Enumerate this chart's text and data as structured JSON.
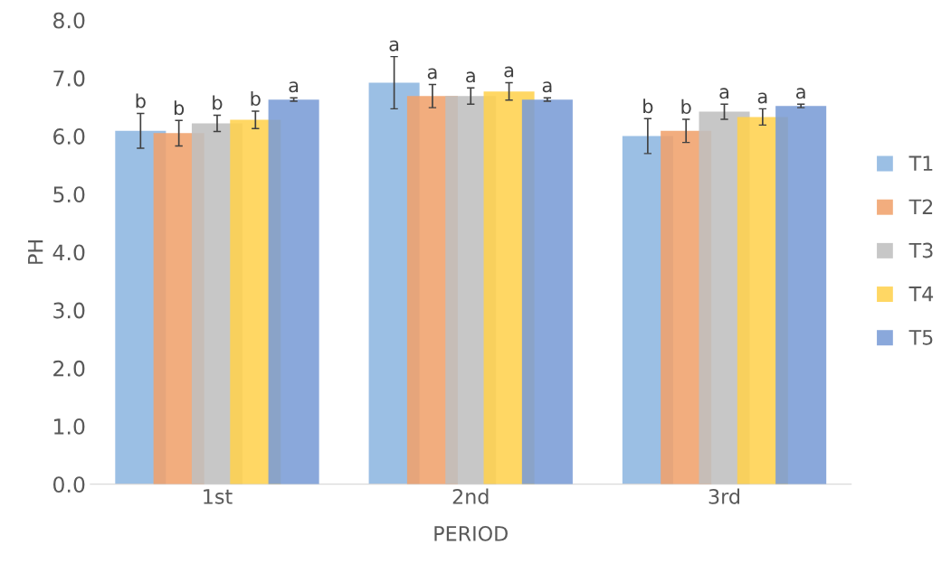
{
  "chart_data": {
    "type": "bar",
    "xlabel": "PERIOD",
    "ylabel": "PH",
    "categories": [
      "1st",
      "2nd",
      "3rd"
    ],
    "series": [
      {
        "name": "T1",
        "color": "#8db6e0",
        "values": [
          6.09,
          6.92,
          6.0
        ],
        "errors": [
          0.3,
          0.45,
          0.3
        ],
        "value_labels": [
          "b",
          "a",
          "b"
        ]
      },
      {
        "name": "T2",
        "color": "#f0a26c",
        "values": [
          6.05,
          6.69,
          6.09
        ],
        "errors": [
          0.22,
          0.2,
          0.2
        ],
        "value_labels": [
          "b",
          "a",
          "b"
        ]
      },
      {
        "name": "T3",
        "color": "#bfbfbf",
        "values": [
          6.22,
          6.69,
          6.42
        ],
        "errors": [
          0.14,
          0.14,
          0.13
        ],
        "value_labels": [
          "b",
          "a",
          "a"
        ]
      },
      {
        "name": "T4",
        "color": "#ffd24f",
        "values": [
          6.28,
          6.77,
          6.33
        ],
        "errors": [
          0.15,
          0.15,
          0.14
        ],
        "value_labels": [
          "b",
          "a",
          "a"
        ]
      },
      {
        "name": "T5",
        "color": "#7a9cd6",
        "values": [
          6.63,
          6.63,
          6.52
        ],
        "errors": [
          0.03,
          0.03,
          0.03
        ],
        "value_labels": [
          "a",
          "a",
          "a"
        ]
      }
    ],
    "ylim": [
      0,
      8
    ],
    "yticks": [
      {
        "value": 0,
        "label": "0.0"
      },
      {
        "value": 1,
        "label": "1.0"
      },
      {
        "value": 2,
        "label": "2.0"
      },
      {
        "value": 3,
        "label": "3.0"
      },
      {
        "value": 4,
        "label": "4.0"
      },
      {
        "value": 5,
        "label": "5.0"
      },
      {
        "value": 6,
        "label": "6.0"
      },
      {
        "value": 7,
        "label": "7.0"
      },
      {
        "value": 8,
        "label": "8.0"
      }
    ],
    "grid": false,
    "legend": "right"
  }
}
